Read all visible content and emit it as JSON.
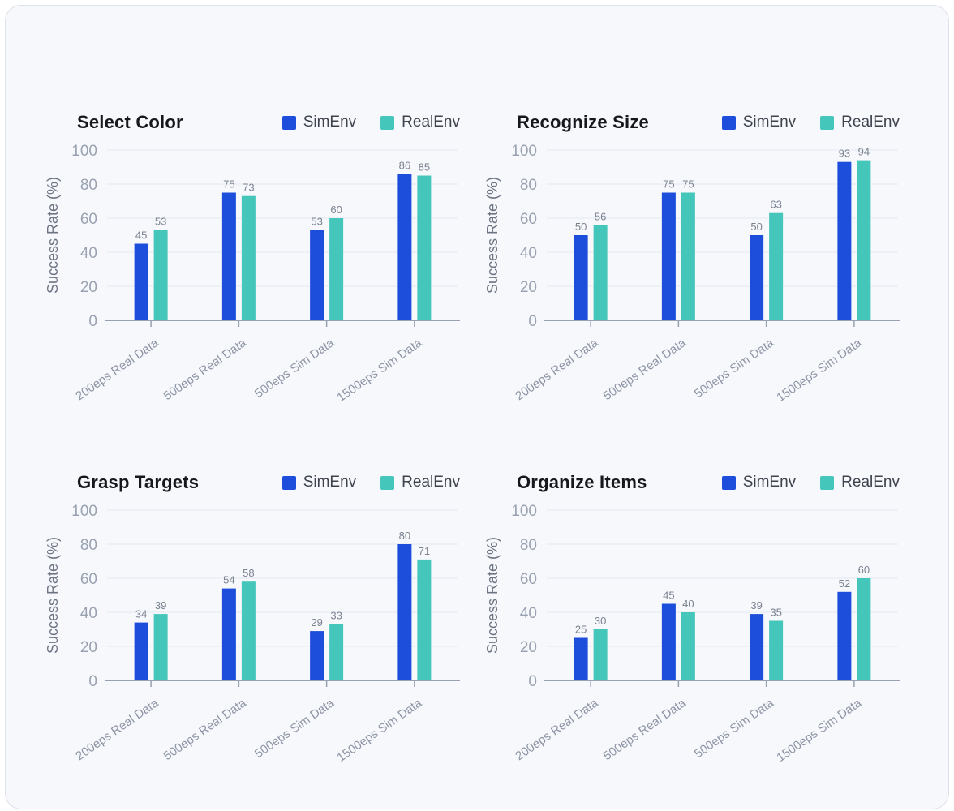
{
  "page": {
    "background": "#ffffff",
    "card_background": "#f6f8fc",
    "card_border": "#dde1ea"
  },
  "colors": {
    "sim": "#1d4edb",
    "real": "#45c6ba",
    "grid": "#e8ecf4",
    "axis": "#98a0b3",
    "tick_label": "#9aa2b1",
    "axis_title": "#6e7484",
    "x_label": "#8d94a4",
    "value_label": "#7b8290",
    "title": "#16181d",
    "legend_text": "#3e434d"
  },
  "chart_data": [
    {
      "type": "bar",
      "title": "Select Color",
      "ylabel": "Success Rate (%)",
      "ylim": [
        0,
        100
      ],
      "yticks": [
        0,
        20,
        40,
        60,
        80,
        100
      ],
      "grid": true,
      "legend_position": "top-right",
      "categories": [
        "200eps Real Data",
        "500eps Real Data",
        "500eps Sim Data",
        "1500eps Sim Data"
      ],
      "series": [
        {
          "name": "SimEnv",
          "color_key": "sim",
          "values": [
            45,
            75,
            53,
            86
          ]
        },
        {
          "name": "RealEnv",
          "color_key": "real",
          "values": [
            53,
            73,
            60,
            85
          ]
        }
      ]
    },
    {
      "type": "bar",
      "title": "Recognize Size",
      "ylabel": "Success Rate (%)",
      "ylim": [
        0,
        100
      ],
      "yticks": [
        0,
        20,
        40,
        60,
        80,
        100
      ],
      "grid": true,
      "legend_position": "top-right",
      "categories": [
        "200eps Real Data",
        "500eps Real Data",
        "500eps Sim Data",
        "1500eps Sim Data"
      ],
      "series": [
        {
          "name": "SimEnv",
          "color_key": "sim",
          "values": [
            50,
            75,
            50,
            93
          ]
        },
        {
          "name": "RealEnv",
          "color_key": "real",
          "values": [
            56,
            75,
            63,
            94
          ]
        }
      ]
    },
    {
      "type": "bar",
      "title": "Grasp Targets",
      "ylabel": "Success Rate (%)",
      "ylim": [
        0,
        100
      ],
      "yticks": [
        0,
        20,
        40,
        60,
        80,
        100
      ],
      "grid": true,
      "legend_position": "top-right",
      "categories": [
        "200eps Real Data",
        "500eps Real Data",
        "500eps Sim Data",
        "1500eps Sim Data"
      ],
      "series": [
        {
          "name": "SimEnv",
          "color_key": "sim",
          "values": [
            34,
            54,
            29,
            80
          ]
        },
        {
          "name": "RealEnv",
          "color_key": "real",
          "values": [
            39,
            58,
            33,
            71
          ]
        }
      ]
    },
    {
      "type": "bar",
      "title": "Organize Items",
      "ylabel": "Success Rate (%)",
      "ylim": [
        0,
        100
      ],
      "yticks": [
        0,
        20,
        40,
        60,
        80,
        100
      ],
      "grid": true,
      "legend_position": "top-right",
      "categories": [
        "200eps Real Data",
        "500eps Real Data",
        "500eps Sim Data",
        "1500eps Sim Data"
      ],
      "series": [
        {
          "name": "SimEnv",
          "color_key": "sim",
          "values": [
            25,
            45,
            39,
            52
          ]
        },
        {
          "name": "RealEnv",
          "color_key": "real",
          "values": [
            30,
            40,
            35,
            60
          ]
        }
      ]
    }
  ]
}
